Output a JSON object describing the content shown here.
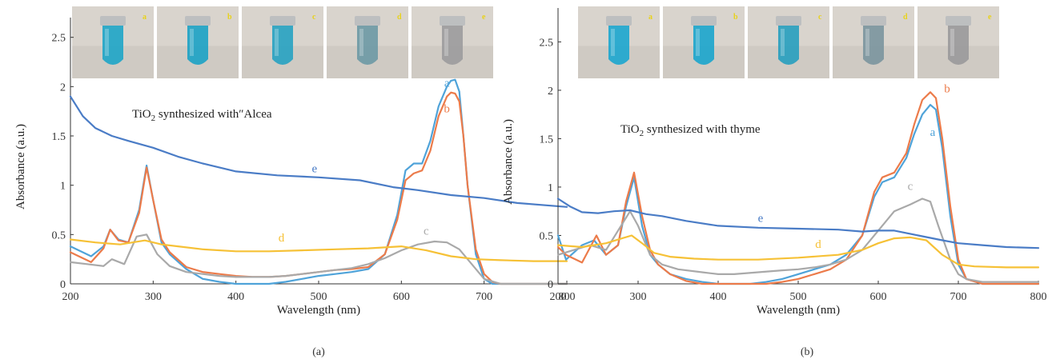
{
  "panels": [
    {
      "panel_label": "(a)",
      "annotation_prefix": "TiO",
      "annotation_sub": "2",
      "annotation_suffix": " synthesized with″Alcea",
      "vial_labels": [
        "a",
        "b",
        "c",
        "d",
        "e"
      ],
      "vial_colors": [
        "#22a6c8",
        "#1fa3c6",
        "#2aa3c2",
        "#6f9aa6",
        "#9d9c9e"
      ]
    },
    {
      "panel_label": "(b)",
      "annotation_prefix": "TiO",
      "annotation_sub": "2",
      "annotation_suffix": " synthesized with thyme",
      "vial_labels": [
        "a",
        "b",
        "c",
        "d",
        "e"
      ],
      "vial_colors": [
        "#1fa7cf",
        "#1ea6cd",
        "#2a9fbf",
        "#7d96a0",
        "#9b9a9c"
      ]
    }
  ],
  "chart_data": [
    {
      "type": "line",
      "xlabel": "Wavelength (nm)",
      "ylabel": "Absorbance (a.u.)",
      "xlim": [
        200,
        800
      ],
      "ylim": [
        0,
        2.7
      ],
      "xticks": [
        200,
        300,
        400,
        500,
        600,
        700,
        800
      ],
      "yticks": [
        0,
        0.5,
        1,
        1.5,
        2,
        2.5
      ],
      "ytick_labels": [
        "0",
        "0.5",
        "1",
        "1.5",
        "2",
        "2.5"
      ],
      "grid": false,
      "series": [
        {
          "name": "a",
          "color": "#4fa3d9",
          "x": [
            200,
            225,
            240,
            248,
            258,
            270,
            283,
            292,
            300,
            310,
            320,
            340,
            360,
            380,
            400,
            420,
            440,
            460,
            480,
            500,
            520,
            540,
            560,
            580,
            595,
            605,
            615,
            625,
            635,
            645,
            655,
            660,
            665,
            670,
            675,
            680,
            690,
            700,
            710,
            720,
            740,
            760,
            780,
            800
          ],
          "y": [
            0.38,
            0.28,
            0.38,
            0.55,
            0.45,
            0.42,
            0.75,
            1.2,
            0.85,
            0.42,
            0.3,
            0.15,
            0.05,
            0.02,
            0.0,
            0.0,
            0.0,
            0.02,
            0.05,
            0.08,
            0.1,
            0.12,
            0.15,
            0.3,
            0.7,
            1.15,
            1.22,
            1.22,
            1.45,
            1.8,
            2.0,
            2.06,
            2.07,
            1.95,
            1.5,
            1.0,
            0.3,
            0.05,
            0.0,
            0.0,
            0.0,
            0.0,
            0.0,
            0.0
          ],
          "label_at": [
            655,
            2.0
          ]
        },
        {
          "name": "b",
          "color": "#ec7b4a",
          "x": [
            200,
            225,
            240,
            248,
            258,
            270,
            283,
            292,
            300,
            310,
            320,
            340,
            360,
            380,
            400,
            420,
            440,
            460,
            480,
            500,
            520,
            540,
            560,
            580,
            595,
            605,
            615,
            625,
            635,
            645,
            655,
            660,
            665,
            670,
            675,
            680,
            690,
            700,
            710,
            720,
            740,
            760,
            780,
            800
          ],
          "y": [
            0.32,
            0.22,
            0.36,
            0.55,
            0.44,
            0.42,
            0.72,
            1.18,
            0.85,
            0.45,
            0.32,
            0.17,
            0.12,
            0.1,
            0.08,
            0.07,
            0.07,
            0.08,
            0.1,
            0.12,
            0.14,
            0.15,
            0.17,
            0.3,
            0.65,
            1.05,
            1.12,
            1.15,
            1.35,
            1.7,
            1.9,
            1.94,
            1.93,
            1.85,
            1.5,
            1.0,
            0.35,
            0.1,
            0.02,
            0.0,
            0.0,
            0.0,
            0.0,
            0.0
          ],
          "label_at": [
            655,
            1.74
          ]
        },
        {
          "name": "c",
          "color": "#a9a9a9",
          "x": [
            200,
            220,
            240,
            250,
            265,
            280,
            292,
            305,
            320,
            340,
            360,
            380,
            400,
            420,
            440,
            460,
            480,
            500,
            520,
            540,
            560,
            580,
            600,
            620,
            640,
            655,
            670,
            685,
            700,
            720,
            740,
            760,
            780,
            800
          ],
          "y": [
            0.22,
            0.2,
            0.18,
            0.25,
            0.2,
            0.48,
            0.5,
            0.3,
            0.18,
            0.12,
            0.1,
            0.08,
            0.07,
            0.07,
            0.07,
            0.08,
            0.1,
            0.12,
            0.14,
            0.16,
            0.2,
            0.26,
            0.34,
            0.4,
            0.43,
            0.42,
            0.35,
            0.2,
            0.05,
            0.0,
            0.0,
            0.0,
            0.0,
            0.0
          ],
          "label_at": [
            630,
            0.5
          ]
        },
        {
          "name": "d",
          "color": "#f6c136",
          "x": [
            200,
            230,
            260,
            290,
            310,
            330,
            360,
            400,
            440,
            480,
            520,
            560,
            600,
            630,
            660,
            690,
            720,
            760,
            800
          ],
          "y": [
            0.45,
            0.42,
            0.4,
            0.44,
            0.4,
            0.38,
            0.35,
            0.33,
            0.33,
            0.34,
            0.35,
            0.36,
            0.38,
            0.34,
            0.28,
            0.25,
            0.24,
            0.23,
            0.23
          ],
          "label_at": [
            455,
            0.43
          ]
        },
        {
          "name": "e",
          "color": "#4a7cc6",
          "x": [
            200,
            215,
            230,
            250,
            270,
            300,
            330,
            360,
            400,
            450,
            500,
            550,
            590,
            620,
            660,
            700,
            740,
            800
          ],
          "y": [
            1.9,
            1.7,
            1.58,
            1.5,
            1.45,
            1.38,
            1.29,
            1.22,
            1.14,
            1.1,
            1.08,
            1.05,
            0.98,
            0.95,
            0.9,
            0.87,
            0.82,
            0.78
          ],
          "label_at": [
            495,
            1.13
          ]
        }
      ]
    },
    {
      "type": "line",
      "xlabel": "Wavelength (nm)",
      "ylabel": "Absorbance (a.u.)",
      "xlim": [
        200,
        800
      ],
      "ylim": [
        0,
        2.85
      ],
      "xticks": [
        200,
        300,
        400,
        500,
        600,
        700,
        800
      ],
      "yticks": [
        0,
        0.5,
        1,
        1.5,
        2,
        2.5
      ],
      "ytick_labels": [
        "0",
        "0.5",
        "1",
        "1.5",
        "2",
        "2.5"
      ],
      "grid": false,
      "series": [
        {
          "name": "a",
          "color": "#4fa3d9",
          "x": [
            200,
            210,
            230,
            245,
            260,
            275,
            285,
            295,
            305,
            315,
            325,
            340,
            360,
            380,
            400,
            420,
            440,
            460,
            480,
            500,
            520,
            540,
            560,
            580,
            595,
            605,
            620,
            635,
            645,
            655,
            665,
            672,
            680,
            690,
            700,
            710,
            730,
            760,
            800
          ],
          "y": [
            0.5,
            0.25,
            0.4,
            0.45,
            0.3,
            0.4,
            0.8,
            1.1,
            0.6,
            0.3,
            0.2,
            0.1,
            0.05,
            0.02,
            0.0,
            0.0,
            0.0,
            0.02,
            0.05,
            0.1,
            0.15,
            0.2,
            0.3,
            0.5,
            0.9,
            1.05,
            1.1,
            1.3,
            1.55,
            1.75,
            1.85,
            1.8,
            1.4,
            0.7,
            0.2,
            0.05,
            0.0,
            0.0,
            0.0
          ],
          "label_at": [
            668,
            1.53
          ]
        },
        {
          "name": "b",
          "color": "#ec7b4a",
          "x": [
            200,
            210,
            230,
            248,
            260,
            275,
            285,
            295,
            305,
            315,
            325,
            340,
            360,
            380,
            400,
            420,
            440,
            460,
            480,
            500,
            520,
            540,
            560,
            580,
            595,
            605,
            620,
            635,
            645,
            655,
            665,
            672,
            680,
            690,
            700,
            710,
            730,
            760,
            800
          ],
          "y": [
            0.38,
            0.3,
            0.22,
            0.5,
            0.3,
            0.4,
            0.85,
            1.15,
            0.7,
            0.35,
            0.2,
            0.1,
            0.03,
            0.0,
            0.0,
            0.0,
            0.0,
            0.0,
            0.02,
            0.05,
            0.1,
            0.15,
            0.25,
            0.5,
            0.95,
            1.1,
            1.15,
            1.35,
            1.65,
            1.9,
            1.98,
            1.92,
            1.5,
            0.8,
            0.25,
            0.05,
            0.0,
            0.0,
            0.0
          ],
          "label_at": [
            686,
            1.98
          ]
        },
        {
          "name": "c",
          "color": "#a9a9a9",
          "x": [
            200,
            220,
            240,
            260,
            275,
            290,
            300,
            315,
            330,
            350,
            380,
            400,
            420,
            450,
            480,
            500,
            520,
            540,
            560,
            580,
            600,
            620,
            640,
            655,
            665,
            675,
            690,
            700,
            710,
            730,
            760,
            800
          ],
          "y": [
            0.3,
            0.35,
            0.4,
            0.35,
            0.55,
            0.75,
            0.6,
            0.3,
            0.2,
            0.15,
            0.12,
            0.1,
            0.1,
            0.12,
            0.14,
            0.15,
            0.17,
            0.2,
            0.25,
            0.35,
            0.55,
            0.75,
            0.82,
            0.88,
            0.85,
            0.6,
            0.25,
            0.1,
            0.05,
            0.02,
            0.02,
            0.02
          ],
          "label_at": [
            640,
            0.97
          ]
        },
        {
          "name": "d",
          "color": "#f6c136",
          "x": [
            200,
            230,
            260,
            280,
            292,
            305,
            320,
            340,
            370,
            400,
            450,
            500,
            550,
            580,
            600,
            620,
            640,
            660,
            680,
            700,
            720,
            760,
            800
          ],
          "y": [
            0.4,
            0.38,
            0.42,
            0.47,
            0.5,
            0.42,
            0.32,
            0.28,
            0.26,
            0.25,
            0.25,
            0.27,
            0.3,
            0.35,
            0.42,
            0.47,
            0.48,
            0.45,
            0.3,
            0.2,
            0.18,
            0.17,
            0.17
          ],
          "label_at": [
            525,
            0.37
          ]
        },
        {
          "name": "e",
          "color": "#4a7cc6",
          "x": [
            200,
            215,
            230,
            250,
            270,
            290,
            310,
            330,
            360,
            400,
            450,
            500,
            550,
            580,
            600,
            620,
            650,
            680,
            700,
            730,
            760,
            800
          ],
          "y": [
            0.88,
            0.8,
            0.74,
            0.73,
            0.75,
            0.76,
            0.72,
            0.7,
            0.65,
            0.6,
            0.58,
            0.57,
            0.56,
            0.54,
            0.55,
            0.55,
            0.5,
            0.45,
            0.42,
            0.4,
            0.38,
            0.37
          ],
          "label_at": [
            453,
            0.64
          ]
        }
      ]
    }
  ]
}
